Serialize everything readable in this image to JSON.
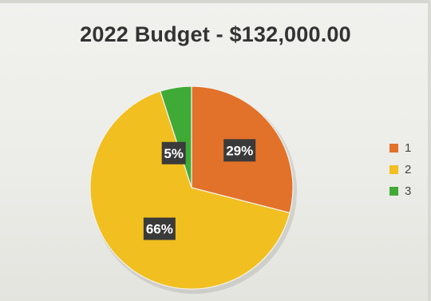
{
  "chart_data": {
    "type": "pie",
    "title": "2022 Budget - $132,000.00",
    "categories": [
      "1",
      "2",
      "3"
    ],
    "values": [
      29,
      66,
      5
    ],
    "data_labels": [
      "29%",
      "66%",
      "5%"
    ],
    "colors": [
      "#e2712a",
      "#f1bf1f",
      "#3faa36"
    ],
    "legend": "right"
  }
}
